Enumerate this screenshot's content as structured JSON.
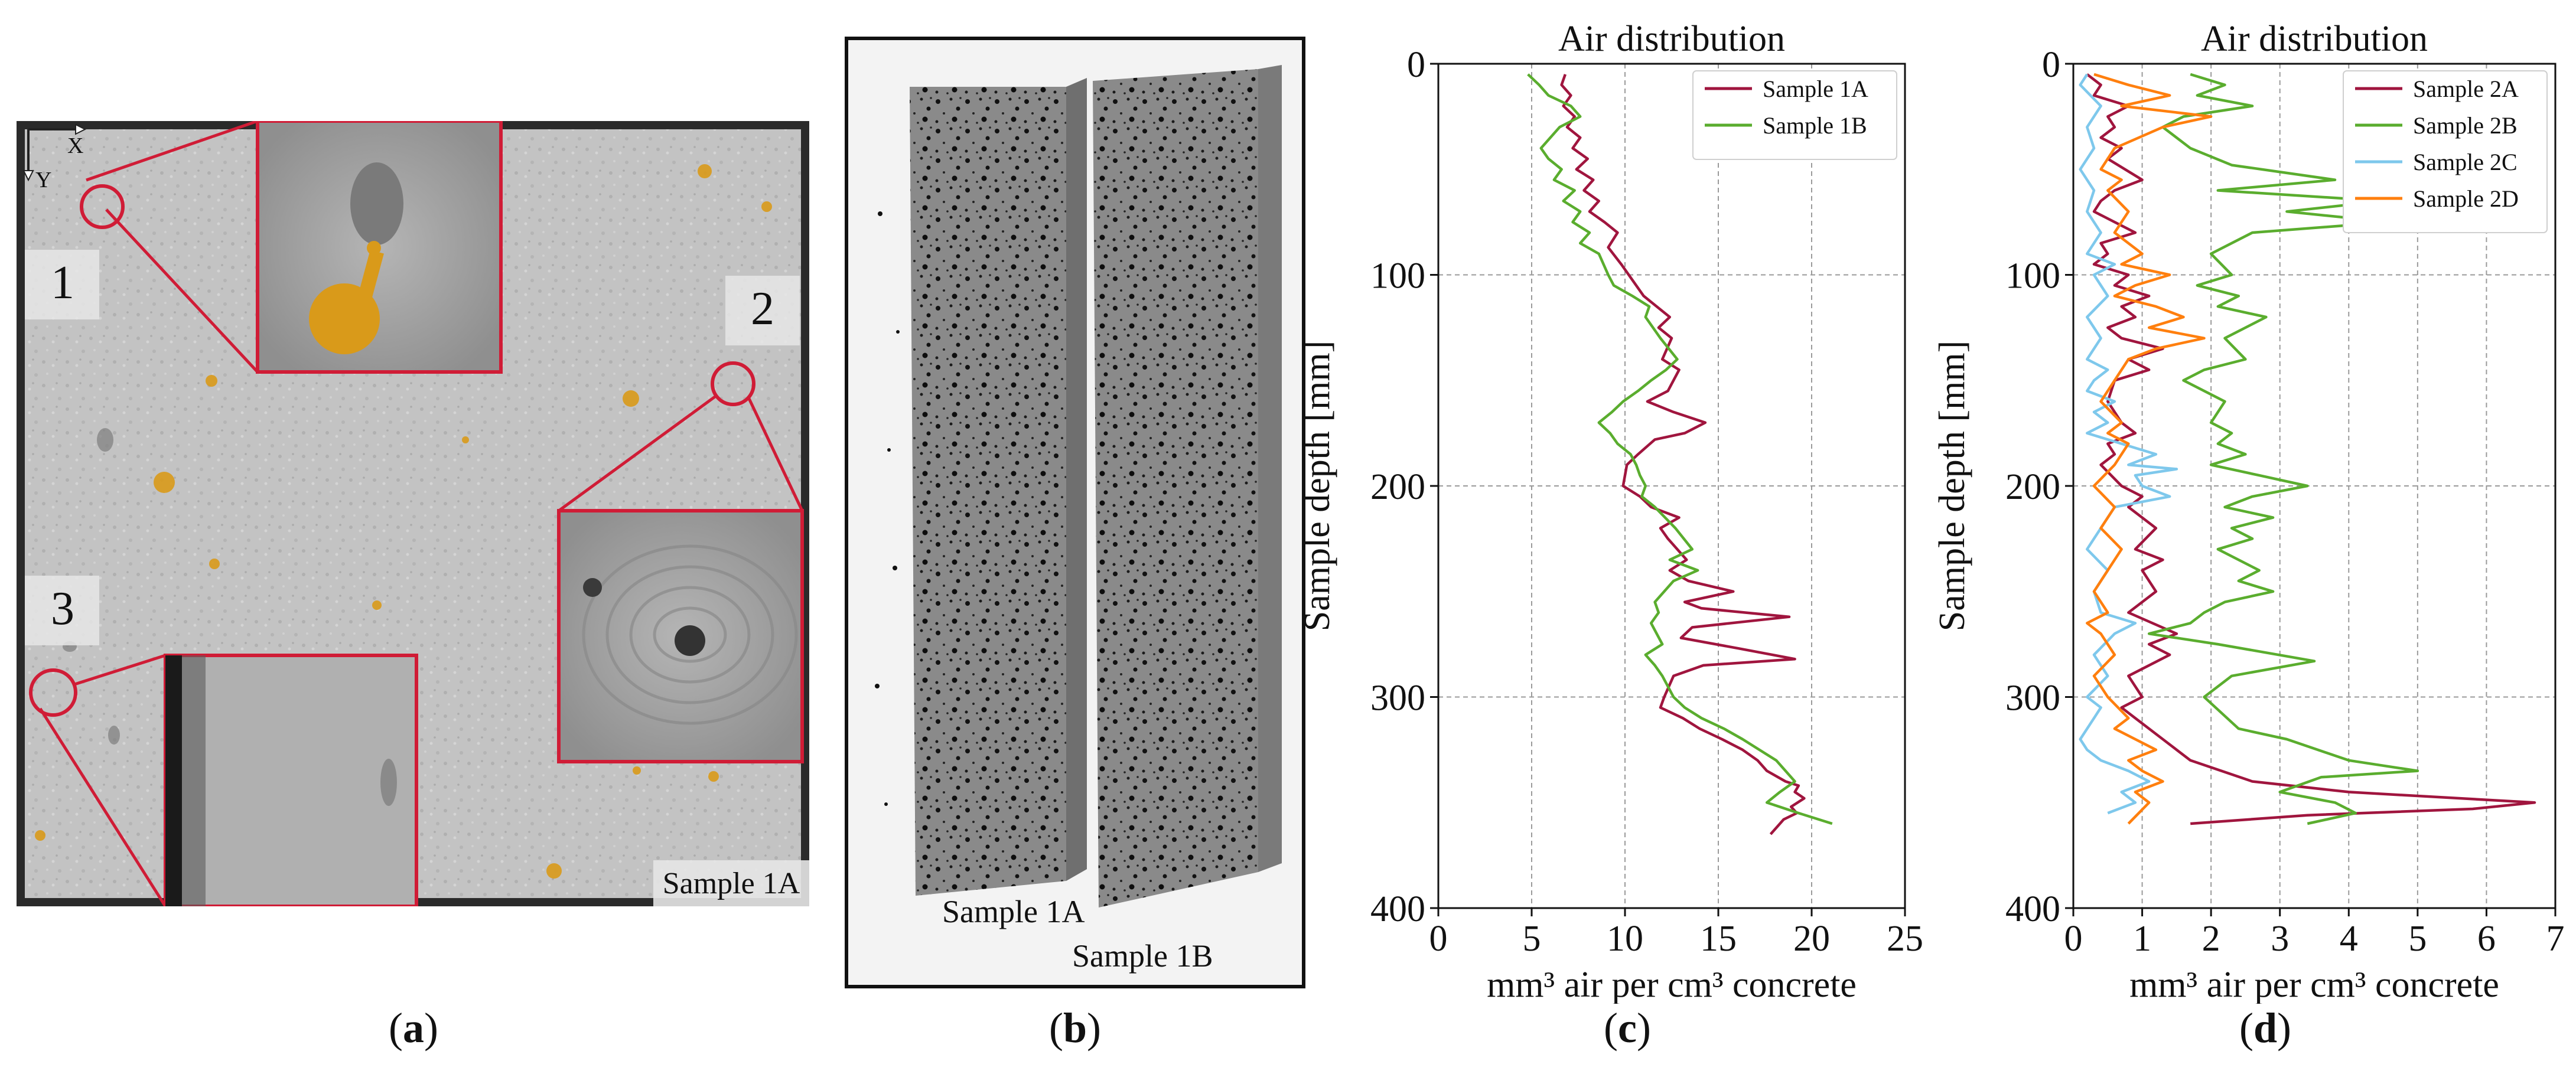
{
  "panels": {
    "a": {
      "label": "a",
      "axis_x": "X",
      "axis_y": "Y",
      "markers": [
        "1",
        "2",
        "3"
      ],
      "sample_tag": "Sample 1A"
    },
    "b": {
      "label": "b",
      "sample_left": "Sample 1A",
      "sample_right": "Sample 1B"
    },
    "c": {
      "label": "c"
    },
    "d": {
      "label": "d"
    }
  },
  "colors": {
    "sample_1a": "#a0153e",
    "sample_1b": "#5aad2e",
    "sample_2a": "#a0153e",
    "sample_2b": "#5aad2e",
    "sample_2c": "#7ec8ec",
    "sample_2d": "#ff7f0e",
    "highlight": "#d01c36",
    "pore": "#d99a1a"
  },
  "chart_data": [
    {
      "id": "c",
      "type": "line",
      "title": "Air distribution",
      "xlabel": "mm³ air per cm³ concrete",
      "ylabel": "Sample depth [mm]",
      "xlim": [
        0,
        25
      ],
      "ylim": [
        400,
        0
      ],
      "xticks": [
        0,
        5,
        10,
        15,
        20,
        25
      ],
      "yticks": [
        0,
        100,
        200,
        300,
        400
      ],
      "grid": true,
      "legend_position": "top-right",
      "series": [
        {
          "name": "Sample 1A",
          "color": "#a0153e",
          "x": [
            6.8,
            6.6,
            7.1,
            6.7,
            7.3,
            6.9,
            7.6,
            7.2,
            8.0,
            7.4,
            8.3,
            7.8,
            8.6,
            8.1,
            8.9,
            9.6,
            9.1,
            9.8,
            11.0,
            12.4,
            11.8,
            12.5,
            12.0,
            12.9,
            12.3,
            11.2,
            12.6,
            14.3,
            13.2,
            11.6,
            10.7,
            10.1,
            9.9,
            10.8,
            11.4,
            12.9,
            11.9,
            12.3,
            12.8,
            13.3,
            12.4,
            13.4,
            15.8,
            13.2,
            14.1,
            18.8,
            13.6,
            13.0,
            16.1,
            19.1,
            14.2,
            12.6,
            12.1,
            11.9,
            13.1,
            14.0,
            15.2,
            16.3,
            17.1,
            17.6,
            18.6,
            19.3,
            19.1,
            19.6,
            18.9,
            19.2,
            18.5,
            17.8
          ],
          "y": [
            5,
            10,
            15,
            20,
            25,
            30,
            35,
            40,
            45,
            50,
            55,
            60,
            65,
            70,
            75,
            80,
            87,
            95,
            110,
            120,
            125,
            130,
            140,
            145,
            155,
            160,
            165,
            170,
            175,
            178,
            185,
            190,
            200,
            205,
            210,
            215,
            220,
            225,
            230,
            235,
            240,
            245,
            250,
            255,
            258,
            262,
            267,
            272,
            277,
            282,
            285,
            290,
            300,
            305,
            310,
            315,
            320,
            325,
            330,
            335,
            340,
            342,
            345,
            348,
            352,
            355,
            358,
            365
          ]
        },
        {
          "name": "Sample 1B",
          "color": "#5aad2e",
          "x": [
            4.8,
            5.4,
            5.9,
            7.1,
            7.6,
            6.5,
            6.0,
            5.5,
            5.9,
            6.6,
            6.2,
            7.3,
            6.7,
            7.6,
            7.2,
            8.1,
            7.6,
            8.6,
            9.1,
            9.4,
            10.4,
            11.3,
            11.1,
            11.9,
            12.8,
            12.2,
            11.4,
            10.7,
            9.9,
            9.3,
            8.6,
            9.2,
            9.6,
            10.3,
            10.6,
            10.8,
            11.1,
            10.9,
            11.6,
            12.7,
            13.6,
            12.4,
            13.9,
            12.6,
            12.1,
            11.6,
            11.8,
            11.4,
            11.7,
            12.0,
            11.1,
            11.6,
            12.0,
            12.6,
            13.2,
            14.1,
            15.3,
            16.3,
            17.2,
            18.1,
            18.6,
            19.1,
            18.3,
            17.6,
            19.3,
            21.1
          ],
          "y": [
            5,
            10,
            15,
            20,
            25,
            30,
            35,
            40,
            45,
            50,
            55,
            60,
            65,
            70,
            75,
            80,
            85,
            90,
            100,
            105,
            110,
            115,
            120,
            130,
            140,
            145,
            150,
            155,
            160,
            165,
            170,
            175,
            180,
            185,
            190,
            195,
            200,
            205,
            210,
            220,
            230,
            235,
            240,
            245,
            250,
            255,
            260,
            265,
            270,
            275,
            280,
            285,
            290,
            300,
            305,
            310,
            315,
            320,
            325,
            330,
            335,
            340,
            345,
            350,
            355,
            360
          ]
        }
      ]
    },
    {
      "id": "d",
      "type": "line",
      "title": "Air distribution",
      "xlabel": "mm³ air per cm³ concrete",
      "ylabel": "Sample depth [mm]",
      "xlim": [
        0,
        7
      ],
      "ylim": [
        400,
        0
      ],
      "xticks": [
        0,
        1,
        2,
        3,
        4,
        5,
        6,
        7
      ],
      "yticks": [
        0,
        100,
        200,
        300,
        400
      ],
      "grid": true,
      "legend_position": "top-right",
      "series": [
        {
          "name": "Sample 2A",
          "color": "#a0153e",
          "x": [
            0.2,
            0.4,
            0.3,
            0.8,
            0.5,
            0.6,
            0.4,
            0.7,
            0.5,
            1.0,
            0.6,
            0.4,
            0.3,
            0.6,
            0.9,
            0.4,
            0.5,
            0.3,
            0.8,
            0.6,
            1.1,
            0.7,
            0.9,
            0.5,
            0.7,
            1.3,
            0.8,
            1.1,
            0.6,
            0.5,
            0.7,
            0.9,
            0.5,
            0.6,
            0.4,
            0.7,
            1.0,
            0.8,
            1.2,
            0.9,
            1.3,
            1.0,
            1.2,
            0.8,
            1.5,
            1.1,
            1.4,
            0.8,
            1.0,
            0.7,
            0.9,
            1.3,
            1.7,
            2.6,
            4.0,
            6.7,
            5.8,
            3.4,
            1.7
          ],
          "y": [
            5,
            10,
            15,
            20,
            25,
            30,
            35,
            40,
            45,
            55,
            60,
            65,
            70,
            75,
            80,
            85,
            90,
            95,
            100,
            105,
            110,
            115,
            120,
            125,
            130,
            135,
            140,
            145,
            150,
            160,
            170,
            175,
            180,
            185,
            190,
            200,
            205,
            210,
            220,
            230,
            235,
            240,
            250,
            260,
            270,
            275,
            280,
            290,
            300,
            305,
            310,
            320,
            330,
            340,
            345,
            350,
            353,
            356,
            360
          ]
        },
        {
          "name": "Sample 2B",
          "color": "#5aad2e",
          "x": [
            1.7,
            2.2,
            1.8,
            2.6,
            1.6,
            1.3,
            1.7,
            2.3,
            3.8,
            2.1,
            4.5,
            3.1,
            4.6,
            2.6,
            2.0,
            2.3,
            1.8,
            2.4,
            2.1,
            2.8,
            2.2,
            2.5,
            1.9,
            1.6,
            2.2,
            2.0,
            2.3,
            2.1,
            2.5,
            2.0,
            2.7,
            3.4,
            2.6,
            2.2,
            2.9,
            2.3,
            2.6,
            2.1,
            2.7,
            2.4,
            2.9,
            2.2,
            1.9,
            1.7,
            1.1,
            2.1,
            3.5,
            2.3,
            1.9,
            2.4,
            3.1,
            4.0,
            5.0,
            3.6,
            3.0,
            3.8,
            4.1,
            3.4
          ],
          "y": [
            5,
            10,
            15,
            20,
            25,
            30,
            40,
            48,
            55,
            60,
            65,
            70,
            75,
            80,
            90,
            100,
            105,
            110,
            115,
            120,
            130,
            140,
            145,
            150,
            160,
            170,
            175,
            180,
            185,
            190,
            195,
            200,
            205,
            210,
            215,
            220,
            225,
            230,
            240,
            245,
            250,
            255,
            260,
            265,
            270,
            275,
            283,
            290,
            300,
            315,
            320,
            330,
            335,
            338,
            345,
            350,
            355,
            360
          ]
        },
        {
          "name": "Sample 2C",
          "color": "#7ec8ec",
          "x": [
            0.2,
            0.1,
            0.4,
            0.2,
            0.3,
            0.1,
            0.3,
            0.2,
            0.4,
            0.2,
            0.6,
            0.3,
            0.5,
            0.2,
            0.4,
            0.2,
            0.5,
            0.3,
            0.2,
            0.6,
            0.3,
            0.5,
            0.2,
            0.7,
            1.2,
            0.8,
            1.5,
            0.9,
            1.0,
            1.4,
            0.6,
            0.4,
            0.2,
            0.5,
            0.3,
            0.4,
            0.9,
            0.6,
            0.3,
            0.5,
            0.2,
            0.4,
            0.3,
            0.1,
            0.2,
            0.4,
            0.8,
            1.1,
            0.7,
            0.9,
            0.5
          ],
          "y": [
            5,
            10,
            20,
            30,
            40,
            50,
            60,
            70,
            80,
            90,
            95,
            100,
            110,
            120,
            130,
            140,
            145,
            150,
            155,
            160,
            165,
            170,
            175,
            180,
            185,
            190,
            192,
            195,
            200,
            205,
            210,
            220,
            230,
            240,
            250,
            260,
            265,
            270,
            280,
            290,
            300,
            305,
            310,
            320,
            325,
            330,
            335,
            340,
            345,
            350,
            355
          ]
        },
        {
          "name": "Sample 2D",
          "color": "#ff7f0e",
          "x": [
            0.3,
            0.8,
            1.4,
            0.7,
            2.0,
            1.3,
            0.6,
            0.4,
            0.7,
            0.5,
            0.8,
            0.6,
            1.0,
            0.7,
            1.4,
            0.9,
            0.6,
            1.2,
            1.6,
            1.1,
            1.9,
            1.2,
            0.8,
            0.6,
            0.4,
            0.7,
            0.5,
            0.8,
            0.6,
            0.3,
            0.6,
            0.4,
            0.7,
            0.5,
            0.3,
            0.5,
            0.2,
            0.4,
            0.6,
            0.3,
            0.5,
            0.8,
            0.6,
            0.9,
            1.2,
            0.8,
            1.0,
            1.3,
            0.9,
            1.1,
            0.8
          ],
          "y": [
            5,
            10,
            15,
            20,
            25,
            30,
            40,
            50,
            55,
            60,
            70,
            80,
            90,
            95,
            100,
            105,
            110,
            115,
            120,
            125,
            130,
            135,
            140,
            150,
            160,
            170,
            175,
            180,
            190,
            200,
            210,
            220,
            230,
            240,
            250,
            260,
            265,
            270,
            280,
            290,
            300,
            310,
            315,
            320,
            325,
            330,
            335,
            340,
            345,
            350,
            360
          ]
        }
      ]
    }
  ]
}
